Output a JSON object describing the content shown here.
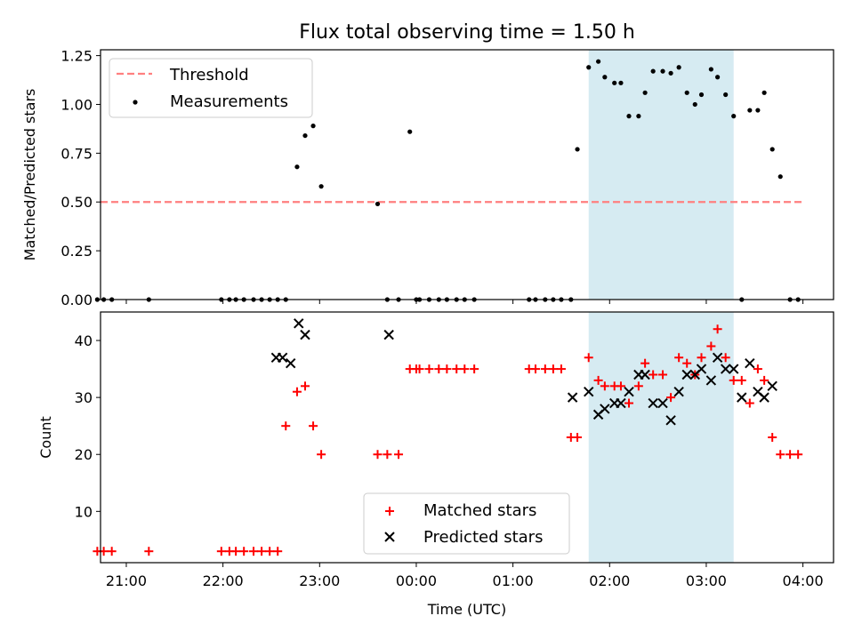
{
  "title": "Flux total observing time = 1.50 h",
  "chart_data": [
    {
      "type": "scatter",
      "ylabel": "Matched/Predicted stars",
      "ylim": [
        0,
        1.28
      ],
      "xlim": [
        "20:44",
        "04:19"
      ],
      "yticks": [
        0.0,
        0.25,
        0.5,
        0.75,
        1.0,
        1.25
      ],
      "ytick_labels": [
        "0.00",
        "0.25",
        "0.50",
        "0.75",
        "1.00",
        "1.25"
      ],
      "legend_position": "top-left",
      "highlight_span": [
        "01:47",
        "03:17"
      ],
      "threshold": {
        "name": "Threshold",
        "value": 0.5,
        "x_range": [
          "20:44",
          "04:00"
        ],
        "color": "#ff7f7f"
      },
      "series": [
        {
          "name": "Measurements",
          "color": "#000000",
          "x": [
            "20:42",
            "20:46",
            "20:51",
            "21:14",
            "21:59",
            "22:04",
            "22:08",
            "22:13",
            "22:19",
            "22:24",
            "22:29",
            "22:34",
            "22:39",
            "22:46",
            "22:51",
            "22:56",
            "23:01",
            "23:36",
            "23:42",
            "23:49",
            "23:56",
            "24:00",
            "24:02",
            "24:08",
            "24:14",
            "24:19",
            "24:25",
            "24:30",
            "24:36",
            "25:10",
            "25:14",
            "25:20",
            "25:25",
            "25:30",
            "25:36",
            "25:40",
            "25:47",
            "25:53",
            "25:57",
            "26:03",
            "26:07",
            "26:12",
            "26:18",
            "26:22",
            "26:27",
            "26:33",
            "26:38",
            "26:43",
            "26:48",
            "26:53",
            "26:57",
            "27:03",
            "27:07",
            "27:12",
            "27:17",
            "27:22",
            "27:27",
            "27:32",
            "27:36",
            "27:41",
            "27:46",
            "27:52",
            "27:57"
          ],
          "y": [
            0,
            0,
            0,
            0,
            0,
            0,
            0,
            0,
            0,
            0,
            0,
            0,
            0,
            0.68,
            0.84,
            0.89,
            0.58,
            0.49,
            0,
            0,
            0.86,
            0,
            0,
            0,
            0,
            0,
            0,
            0,
            0,
            0,
            0,
            0,
            0,
            0,
            0,
            0.77,
            1.19,
            1.22,
            1.14,
            1.11,
            1.11,
            0.94,
            0.94,
            1.06,
            1.17,
            1.17,
            1.16,
            1.19,
            1.06,
            1.0,
            1.05,
            1.18,
            1.14,
            1.05,
            0.94,
            0,
            0.97,
            0.97,
            1.06,
            0.77,
            0.63,
            0,
            0
          ]
        }
      ]
    },
    {
      "type": "scatter",
      "xlabel": "Time (UTC)",
      "ylabel": "Count",
      "ylim": [
        1,
        45
      ],
      "xlim": [
        "20:44",
        "04:19"
      ],
      "xticks": [
        "21:00",
        "22:00",
        "23:00",
        "00:00",
        "01:00",
        "02:00",
        "03:00",
        "04:00"
      ],
      "yticks": [
        10,
        20,
        30,
        40
      ],
      "legend_position": "bottom-center",
      "highlight_span": [
        "01:47",
        "03:17"
      ],
      "series": [
        {
          "name": "Matched stars",
          "marker": "plus",
          "color": "#ff0000",
          "x": [
            "20:42",
            "20:46",
            "20:51",
            "21:14",
            "21:59",
            "22:04",
            "22:08",
            "22:13",
            "22:19",
            "22:24",
            "22:29",
            "22:34",
            "22:39",
            "22:46",
            "22:51",
            "22:56",
            "23:01",
            "23:36",
            "23:42",
            "23:49",
            "23:56",
            "24:00",
            "24:02",
            "24:08",
            "24:14",
            "24:19",
            "24:25",
            "24:30",
            "24:36",
            "25:10",
            "25:14",
            "25:20",
            "25:25",
            "25:30",
            "25:36",
            "25:40",
            "25:47",
            "25:53",
            "25:57",
            "26:03",
            "26:07",
            "26:12",
            "26:18",
            "26:22",
            "26:27",
            "26:33",
            "26:38",
            "26:43",
            "26:48",
            "26:53",
            "26:57",
            "27:03",
            "27:07",
            "27:12",
            "27:17",
            "27:22",
            "27:27",
            "27:32",
            "27:36",
            "27:41",
            "27:46",
            "27:52",
            "27:57"
          ],
          "y": [
            3,
            3,
            3,
            3,
            3,
            3,
            3,
            3,
            3,
            3,
            3,
            3,
            25,
            31,
            32,
            25,
            20,
            20,
            20,
            20,
            35,
            35,
            35,
            35,
            35,
            35,
            35,
            35,
            35,
            35,
            35,
            35,
            35,
            35,
            23,
            23,
            37,
            33,
            32,
            32,
            32,
            29,
            32,
            36,
            34,
            34,
            30,
            37,
            36,
            34,
            37,
            39,
            42,
            37,
            33,
            33,
            29,
            35,
            33,
            23,
            20,
            20,
            20
          ]
        },
        {
          "name": "Predicted stars",
          "marker": "x",
          "color": "#000000",
          "x": [
            "22:33",
            "22:37",
            "22:42",
            "22:47",
            "22:51",
            "23:43",
            "25:37",
            "25:47",
            "25:53",
            "25:57",
            "26:03",
            "26:07",
            "26:12",
            "26:18",
            "26:22",
            "26:27",
            "26:33",
            "26:38",
            "26:43",
            "26:48",
            "26:53",
            "26:57",
            "27:03",
            "27:07",
            "27:12",
            "27:17",
            "27:22",
            "27:27",
            "27:32",
            "27:36",
            "27:41"
          ],
          "y": [
            37,
            37,
            36,
            43,
            41,
            41,
            30,
            31,
            27,
            28,
            29,
            29,
            31,
            34,
            34,
            29,
            29,
            26,
            31,
            34,
            34,
            35,
            33,
            37,
            35,
            35,
            30,
            36,
            31,
            30,
            32
          ]
        }
      ]
    }
  ]
}
